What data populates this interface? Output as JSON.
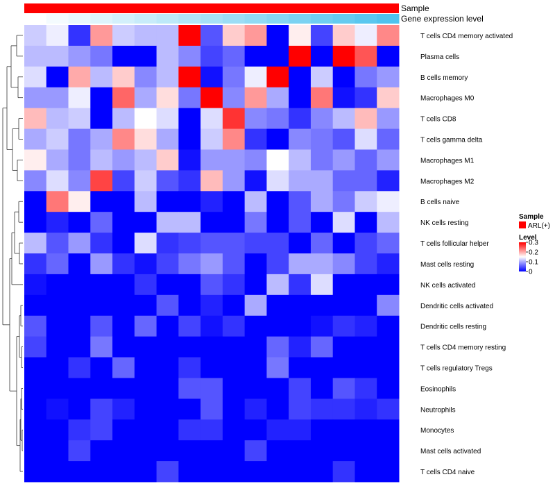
{
  "chart_data": {
    "type": "heatmap",
    "annotation_tracks": [
      {
        "name": "Sample",
        "label": "Sample"
      },
      {
        "name": "Gene expression level",
        "label": "Gene expression level"
      }
    ],
    "legend_sample": {
      "title": "Sample",
      "entries": [
        {
          "label": "ARL(+)",
          "color": "#FF0000"
        }
      ]
    },
    "legend_level": {
      "title": "Level",
      "ticks": [
        0.3,
        0.2,
        0.1,
        0
      ],
      "tick_labels": [
        "0.3",
        "0.2",
        "0.1",
        "0"
      ],
      "range": [
        0,
        0.3
      ]
    },
    "colors": {
      "low": "#0000FF",
      "mid": "#FFFFFF",
      "high": "#FF0000",
      "sample_bar": "#FF0000",
      "expr_low": "#FFFFFF",
      "expr_high": "#4FC3EE"
    },
    "n_columns": 17,
    "rows": [
      {
        "label": "T cells CD4 memory activated",
        "values": [
          0.12,
          0.14,
          0.03,
          0.21,
          0.12,
          0.11,
          0.11,
          0.3,
          0.05,
          0.18,
          0.21,
          0.0,
          0.16,
          0.04,
          0.18,
          0.14,
          0.22
        ]
      },
      {
        "label": "Plasma cells",
        "values": [
          0.11,
          0.11,
          0.09,
          0.07,
          0.0,
          0.0,
          0.11,
          0.08,
          0.04,
          0.06,
          0.0,
          0.0,
          0.3,
          0.0,
          0.3,
          0.25,
          0.0
        ]
      },
      {
        "label": "B cells memory",
        "values": [
          0.13,
          0.0,
          0.2,
          0.11,
          0.18,
          0.08,
          0.11,
          0.3,
          0.01,
          0.07,
          0.14,
          0.3,
          0.0,
          0.12,
          0.0,
          0.07,
          0.09
        ]
      },
      {
        "label": "Macrophages M0",
        "values": [
          0.09,
          0.09,
          0.14,
          0.0,
          0.24,
          0.1,
          0.17,
          0.07,
          0.3,
          0.08,
          0.21,
          0.1,
          0.0,
          0.23,
          0.01,
          0.03,
          0.18
        ]
      },
      {
        "label": "T cells CD8",
        "values": [
          0.19,
          0.11,
          0.12,
          0.0,
          0.11,
          0.15,
          0.13,
          0.0,
          0.13,
          0.27,
          0.08,
          0.07,
          0.03,
          0.08,
          0.11,
          0.19,
          0.09
        ]
      },
      {
        "label": "T cells gamma delta",
        "values": [
          0.1,
          0.12,
          0.07,
          0.1,
          0.22,
          0.17,
          0.1,
          0.0,
          0.12,
          0.22,
          0.03,
          0.0,
          0.08,
          0.07,
          0.05,
          0.13,
          0.06
        ]
      },
      {
        "label": "Macrophages M1",
        "values": [
          0.16,
          0.1,
          0.07,
          0.11,
          0.09,
          0.11,
          0.18,
          0.01,
          0.09,
          0.09,
          0.08,
          0.15,
          0.11,
          0.07,
          0.09,
          0.06,
          0.09
        ]
      },
      {
        "label": "Macrophages M2",
        "values": [
          0.08,
          0.13,
          0.08,
          0.26,
          0.04,
          0.12,
          0.05,
          0.03,
          0.19,
          0.09,
          0.01,
          0.13,
          0.1,
          0.1,
          0.06,
          0.06,
          0.02
        ]
      },
      {
        "label": "B cells naive",
        "values": [
          0.0,
          0.23,
          0.16,
          0.0,
          0.0,
          0.11,
          0.0,
          0.0,
          0.02,
          0.0,
          0.11,
          0.0,
          0.05,
          0.1,
          0.07,
          0.12,
          0.14
        ]
      },
      {
        "label": "NK cells resting",
        "values": [
          0.0,
          0.02,
          0.0,
          0.06,
          0.0,
          0.0,
          0.11,
          0.11,
          0.0,
          0.0,
          0.07,
          0.0,
          0.05,
          0.0,
          0.13,
          0.0,
          0.11
        ]
      },
      {
        "label": "T cells follicular helper",
        "values": [
          0.11,
          0.05,
          0.09,
          0.03,
          0.0,
          0.13,
          0.03,
          0.04,
          0.05,
          0.05,
          0.04,
          0.04,
          0.0,
          0.06,
          0.0,
          0.04,
          0.06
        ]
      },
      {
        "label": "Mast cells resting",
        "values": [
          0.03,
          0.06,
          0.0,
          0.09,
          0.03,
          0.01,
          0.04,
          0.07,
          0.09,
          0.05,
          0.0,
          0.04,
          0.1,
          0.1,
          0.08,
          0.04,
          0.02
        ]
      },
      {
        "label": "NK cells activated",
        "values": [
          0.01,
          0.0,
          0.0,
          0.0,
          0.0,
          0.03,
          0.0,
          0.0,
          0.05,
          0.03,
          0.0,
          0.11,
          0.03,
          0.13,
          0.0,
          0.0,
          0.0
        ]
      },
      {
        "label": "Dendritic cells activated",
        "values": [
          0.0,
          0.0,
          0.0,
          0.0,
          0.0,
          0.0,
          0.05,
          0.0,
          0.02,
          0.0,
          0.1,
          0.0,
          0.0,
          0.0,
          0.0,
          0.0,
          0.08
        ]
      },
      {
        "label": "Dendritic cells resting",
        "values": [
          0.05,
          0.0,
          0.0,
          0.05,
          0.0,
          0.06,
          0.0,
          0.04,
          0.01,
          0.03,
          0.0,
          0.0,
          0.0,
          0.01,
          0.03,
          0.02,
          0.0
        ]
      },
      {
        "label": "T cells CD4 memory resting",
        "values": [
          0.04,
          0.0,
          0.0,
          0.07,
          0.0,
          0.0,
          0.0,
          0.0,
          0.0,
          0.0,
          0.0,
          0.06,
          0.02,
          0.06,
          0.0,
          0.0,
          0.0
        ]
      },
      {
        "label": "T cells regulatory  Tregs",
        "values": [
          0.0,
          0.0,
          0.03,
          0.0,
          0.06,
          0.0,
          0.0,
          0.03,
          0.0,
          0.0,
          0.0,
          0.07,
          0.0,
          0.0,
          0.0,
          0.0,
          0.0
        ]
      },
      {
        "label": "Eosinophils",
        "values": [
          0.0,
          0.0,
          0.0,
          0.0,
          0.0,
          0.0,
          0.0,
          0.05,
          0.05,
          0.0,
          0.0,
          0.0,
          0.04,
          0.0,
          0.05,
          0.03,
          0.0
        ]
      },
      {
        "label": "Neutrophils",
        "values": [
          0.0,
          0.01,
          0.0,
          0.04,
          0.02,
          0.0,
          0.0,
          0.0,
          0.05,
          0.0,
          0.02,
          0.0,
          0.04,
          0.03,
          0.03,
          0.02,
          0.03
        ]
      },
      {
        "label": "Monocytes",
        "values": [
          0.0,
          0.0,
          0.03,
          0.04,
          0.0,
          0.0,
          0.0,
          0.03,
          0.03,
          0.0,
          0.0,
          0.02,
          0.02,
          0.0,
          0.0,
          0.0,
          0.0
        ]
      },
      {
        "label": "Mast cells activated",
        "values": [
          0.0,
          0.0,
          0.04,
          0.0,
          0.0,
          0.0,
          0.0,
          0.0,
          0.0,
          0.0,
          0.04,
          0.0,
          0.0,
          0.0,
          0.0,
          0.0,
          0.0
        ]
      },
      {
        "label": "T cells CD4 naive",
        "values": [
          0.0,
          0.0,
          0.0,
          0.0,
          0.0,
          0.0,
          0.04,
          0.0,
          0.0,
          0.0,
          0.0,
          0.0,
          0.0,
          0.0,
          0.03,
          0.0,
          0.0
        ]
      }
    ]
  }
}
